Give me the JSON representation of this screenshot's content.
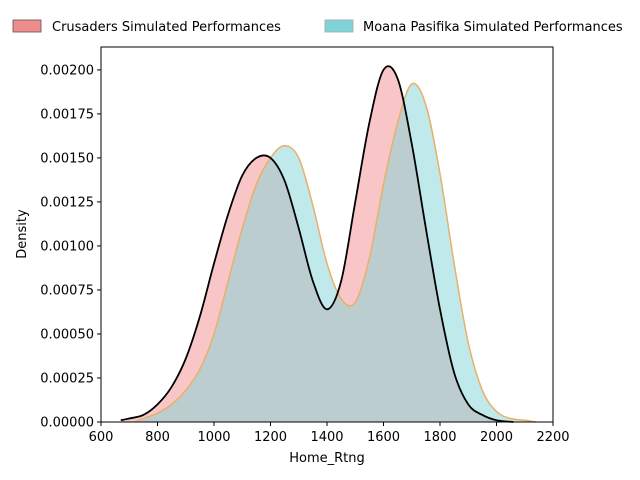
{
  "chart_data": {
    "type": "area",
    "title": "",
    "xlabel": "Home_Rtng",
    "ylabel": "Density",
    "xlim": [
      600,
      2200
    ],
    "ylim": [
      0,
      0.00213
    ],
    "xticks": [
      600,
      800,
      1000,
      1200,
      1400,
      1600,
      1800,
      2000,
      2200
    ],
    "xtick_labels": [
      "600",
      "800",
      "1000",
      "1200",
      "1400",
      "1600",
      "1800",
      "2000",
      "2200"
    ],
    "yticks": [
      0,
      0.00025,
      0.0005,
      0.00075,
      0.001,
      0.00125,
      0.0015,
      0.00175,
      0.002
    ],
    "ytick_labels": [
      "0.00000",
      "0.00025",
      "0.00050",
      "0.00075",
      "0.00100",
      "0.00125",
      "0.00150",
      "0.00175",
      "0.00200"
    ],
    "grid": false,
    "legend_position": "top, outside plot area",
    "series": [
      {
        "name": "Crusaders Simulated Performances",
        "fill": "#f08080",
        "line": "#000000",
        "x": [
          670,
          700,
          750,
          800,
          850,
          900,
          950,
          1000,
          1050,
          1100,
          1150,
          1200,
          1250,
          1300,
          1350,
          1400,
          1450,
          1500,
          1550,
          1600,
          1650,
          1700,
          1750,
          1800,
          1850,
          1900,
          1950,
          2000,
          2060
        ],
        "y": [
          1e-05,
          2e-05,
          4e-05,
          0.0001,
          0.0002,
          0.00036,
          0.0006,
          0.0009,
          0.00118,
          0.0014,
          0.0015,
          0.0015,
          0.00137,
          0.0011,
          0.0008,
          0.00064,
          0.0008,
          0.00125,
          0.0017,
          0.002,
          0.00195,
          0.00158,
          0.0011,
          0.00064,
          0.00028,
          0.0001,
          4e-05,
          1e-05,
          0.0
        ]
      },
      {
        "name": "Moana Pasifika Simulated Performances",
        "fill": "#80d4d8",
        "line": "#e8b06a",
        "x": [
          720,
          750,
          800,
          850,
          900,
          950,
          1000,
          1050,
          1100,
          1150,
          1200,
          1250,
          1300,
          1350,
          1400,
          1450,
          1500,
          1550,
          1600,
          1650,
          1700,
          1750,
          1800,
          1850,
          1900,
          1950,
          2000,
          2050,
          2100,
          2140
        ],
        "y": [
          0.0,
          2e-05,
          5e-05,
          0.0001,
          0.00018,
          0.0003,
          0.0005,
          0.0008,
          0.0011,
          0.00135,
          0.0015,
          0.00157,
          0.0015,
          0.00123,
          0.0009,
          0.0007,
          0.00068,
          0.00093,
          0.00135,
          0.0017,
          0.00192,
          0.0018,
          0.00141,
          0.0009,
          0.00045,
          0.00018,
          6e-05,
          2e-05,
          1e-05,
          0.0
        ]
      }
    ]
  }
}
